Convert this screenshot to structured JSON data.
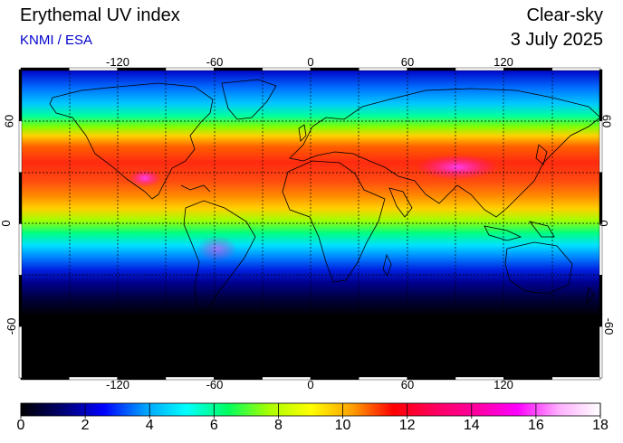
{
  "header": {
    "title": "Erythemal UV index",
    "credit": "KNMI / ESA",
    "mode": "Clear-sky",
    "date": "3 July 2025"
  },
  "map": {
    "lon_ticks": [
      "-120",
      "-60",
      "0",
      "60",
      "120"
    ],
    "lat_ticks": [
      "60",
      "0",
      "-60"
    ],
    "lon_range": [
      -180,
      180
    ],
    "lat_range": [
      -90,
      90
    ],
    "gridlines": "dotted every 30 degrees"
  },
  "colorbar": {
    "labels": [
      "0",
      "2",
      "4",
      "6",
      "8",
      "10",
      "12",
      "14",
      "16",
      "18"
    ],
    "range": [
      0,
      18
    ],
    "colors": [
      "#000000",
      "#000070",
      "#0000ff",
      "#00a0ff",
      "#00ffff",
      "#00ff60",
      "#aaff00",
      "#ffff00",
      "#ffa000",
      "#ff0000",
      "#ff0060",
      "#ff00a0",
      "#ff00ff",
      "#ffb0ff",
      "#ffffff"
    ]
  },
  "colors": {
    "credit": "#0000cc",
    "coastline": "#000000",
    "background": "#ffffff"
  }
}
